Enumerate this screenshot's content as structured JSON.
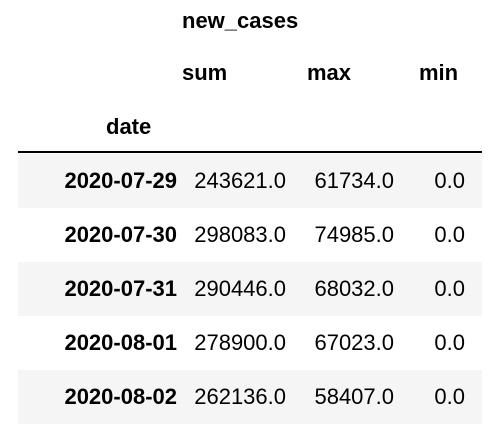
{
  "table": {
    "column_group": "new_cases",
    "columns": [
      "sum",
      "max",
      "min"
    ],
    "index_name": "date",
    "rows": [
      {
        "date": "2020-07-29",
        "sum": "243621.0",
        "max": "61734.0",
        "min": "0.0"
      },
      {
        "date": "2020-07-30",
        "sum": "298083.0",
        "max": "74985.0",
        "min": "0.0"
      },
      {
        "date": "2020-07-31",
        "sum": "290446.0",
        "max": "68032.0",
        "min": "0.0"
      },
      {
        "date": "2020-08-01",
        "sum": "278900.0",
        "max": "67023.0",
        "min": "0.0"
      },
      {
        "date": "2020-08-02",
        "sum": "262136.0",
        "max": "58407.0",
        "min": "0.0"
      }
    ]
  },
  "colors": {
    "striped_row": "#f5f5f5",
    "text": "#000000",
    "background": "#ffffff"
  }
}
